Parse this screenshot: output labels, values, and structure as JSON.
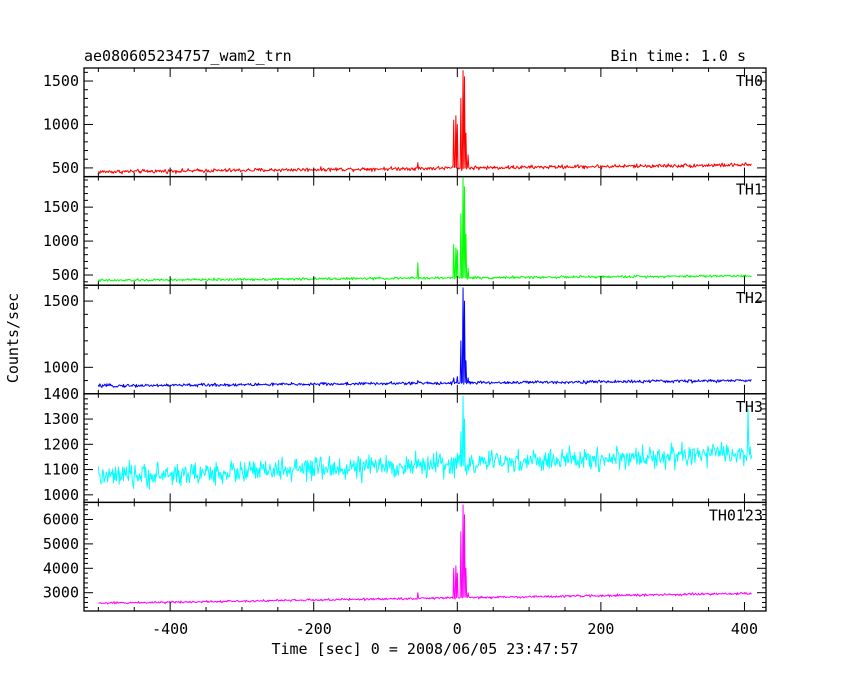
{
  "chart_data": {
    "type": "line",
    "title": "ae080605234757_wam2_trn",
    "subtitle": "Bin time: 1.0 s",
    "xlabel": "Time [sec] 0 = 2008/06/05 23:47:57",
    "ylabel": "Counts/sec",
    "xlim": [
      -520,
      430
    ],
    "xticks": [
      -400,
      -200,
      0,
      200,
      400
    ],
    "x_range": [
      -500,
      410
    ],
    "grid": false,
    "panels": [
      {
        "name": "TH0",
        "color": "#ff0000",
        "ylim": [
          400,
          1650
        ],
        "yticks": [
          500,
          1000,
          1500
        ],
        "baseline_start": 455,
        "baseline_end": 535,
        "noise": 22,
        "spikes": [
          [
            -55,
            560
          ],
          [
            -5,
            1050
          ],
          [
            -2,
            1100
          ],
          [
            0,
            1000
          ],
          [
            5,
            1300
          ],
          [
            8,
            1620
          ],
          [
            10,
            1550
          ],
          [
            12,
            900
          ],
          [
            15,
            650
          ]
        ]
      },
      {
        "name": "TH1",
        "color": "#00ff00",
        "ylim": [
          350,
          1950
        ],
        "yticks": [
          500,
          1000,
          1500
        ],
        "baseline_start": 420,
        "baseline_end": 490,
        "noise": 18,
        "spikes": [
          [
            -55,
            680
          ],
          [
            -5,
            950
          ],
          [
            -2,
            900
          ],
          [
            0,
            870
          ],
          [
            5,
            1400
          ],
          [
            8,
            1930
          ],
          [
            10,
            1800
          ],
          [
            12,
            1100
          ],
          [
            15,
            600
          ]
        ]
      },
      {
        "name": "TH2",
        "color": "#0000ff",
        "ylim": [
          800,
          1620
        ],
        "yticks": [
          1000,
          1500
        ],
        "baseline_start": 860,
        "baseline_end": 900,
        "noise": 12,
        "spikes": [
          [
            -55,
            900
          ],
          [
            -5,
            920
          ],
          [
            0,
            930
          ],
          [
            5,
            1200
          ],
          [
            8,
            1600
          ],
          [
            10,
            1500
          ],
          [
            12,
            1050
          ],
          [
            15,
            920
          ]
        ]
      },
      {
        "name": "TH3",
        "color": "#00ffff",
        "ylim": [
          970,
          1400
        ],
        "yticks": [
          1000,
          1100,
          1200,
          1300,
          1400
        ],
        "baseline_start": 1070,
        "baseline_end": 1165,
        "noise": 45,
        "spikes": [
          [
            5,
            1250
          ],
          [
            8,
            1390
          ],
          [
            10,
            1300
          ],
          [
            405,
            1340
          ]
        ]
      },
      {
        "name": "TH0123",
        "color": "#ff00ff",
        "ylim": [
          2250,
          6700
        ],
        "yticks": [
          3000,
          4000,
          5000,
          6000
        ],
        "baseline_start": 2570,
        "baseline_end": 2970,
        "noise": 45,
        "spikes": [
          [
            -55,
            3000
          ],
          [
            -5,
            4000
          ],
          [
            -2,
            4100
          ],
          [
            0,
            3800
          ],
          [
            5,
            5500
          ],
          [
            8,
            6600
          ],
          [
            10,
            6200
          ],
          [
            12,
            4000
          ],
          [
            15,
            3000
          ]
        ]
      }
    ]
  }
}
